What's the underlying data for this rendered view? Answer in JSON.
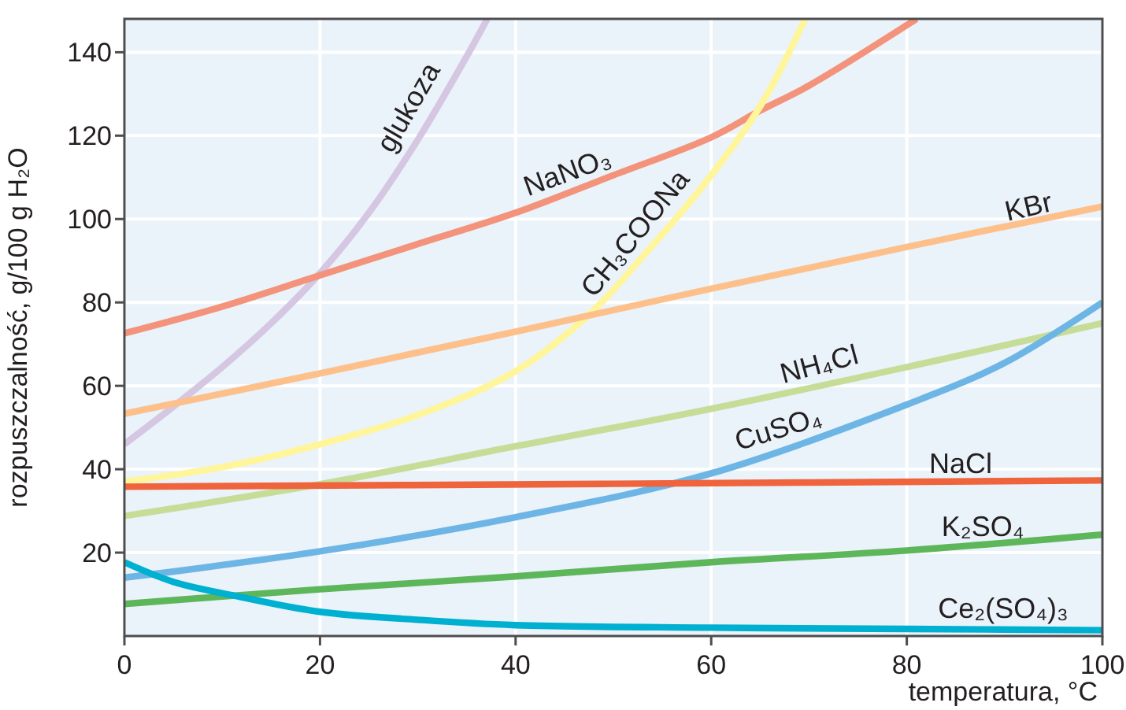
{
  "chart_data": {
    "type": "line",
    "xlabel": "temperatura, °C",
    "ylabel": "rozpuszczalność, g/100 g H₂O",
    "xlim": [
      0,
      100
    ],
    "xticks": [
      0,
      20,
      40,
      60,
      80,
      100
    ],
    "ylim": [
      0,
      148
    ],
    "yticks": [
      20,
      40,
      60,
      80,
      100,
      120,
      140
    ],
    "grid": true,
    "legend": false,
    "marker": "none",
    "line_style": "solid",
    "series": [
      {
        "name": "glukoza",
        "color": "#d5c6e2",
        "x": [
          0,
          5,
          10,
          15,
          20,
          25,
          30,
          35,
          37.1
        ],
        "values": [
          46,
          55,
          64.5,
          75,
          87,
          101.5,
          119,
          139,
          148
        ]
      },
      {
        "name": "NaNO₃",
        "color": "#f4937b",
        "x": [
          0,
          10,
          20,
          30,
          40,
          50,
          60,
          65,
          70,
          81
        ],
        "values": [
          72.6,
          79,
          86.5,
          94,
          101.5,
          110.5,
          119.6,
          126,
          132,
          148
        ]
      },
      {
        "name": "CH₃COONa",
        "color": "#fff59b",
        "x": [
          0,
          10,
          20,
          30,
          40,
          47.7,
          53,
          59,
          65,
          69.6
        ],
        "values": [
          37,
          40.5,
          46,
          53,
          63.5,
          77.5,
          91,
          107.5,
          127,
          148
        ]
      },
      {
        "name": "KBr",
        "color": "#fdc08b",
        "x": [
          0,
          20,
          40,
          60,
          80,
          100
        ],
        "values": [
          53.3,
          63,
          73,
          83.3,
          93.3,
          103
        ]
      },
      {
        "name": "NH₄Cl",
        "color": "#c6dd98",
        "x": [
          0,
          20,
          40,
          60,
          80,
          100
        ],
        "values": [
          28.8,
          36.4,
          45.5,
          54.5,
          64.5,
          75
        ]
      },
      {
        "name": "CuSO₄",
        "color": "#6db5e5",
        "x": [
          0,
          20,
          40,
          60,
          80,
          90,
          100
        ],
        "values": [
          14,
          20.3,
          28.5,
          39,
          55.5,
          65.5,
          80
        ]
      },
      {
        "name": "NaCl",
        "color": "#ef643d",
        "x": [
          0,
          50,
          100
        ],
        "values": [
          35.8,
          36.5,
          37.3
        ]
      },
      {
        "name": "K₂SO₄",
        "color": "#5db75a",
        "x": [
          0,
          20,
          40,
          60,
          80,
          100
        ],
        "values": [
          7.7,
          11.2,
          14.3,
          17.7,
          20.5,
          24.3
        ]
      },
      {
        "name": "Ce₂(SO₄)₃",
        "color": "#00b0d1",
        "x": [
          0,
          5,
          11.4,
          20,
          30,
          40,
          60,
          80,
          100
        ],
        "values": [
          17.7,
          13,
          9.6,
          5.8,
          3.9,
          2.6,
          2,
          1.7,
          1.4
        ]
      }
    ]
  }
}
